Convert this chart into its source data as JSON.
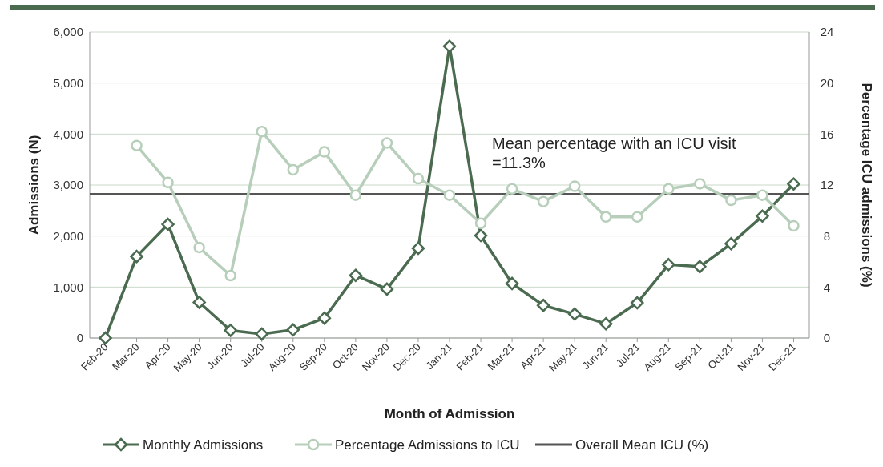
{
  "chart_data": {
    "type": "line",
    "xlabel": "Month of Admission",
    "ylabel": "Admissions (N)",
    "y2label": "Percentage ICU admissions (%)",
    "categories": [
      "Feb-20",
      "Mar-20",
      "Apr-20",
      "May-20",
      "Jun-20",
      "Jul-20",
      "Aug-20",
      "Sep-20",
      "Oct-20",
      "Nov-20",
      "Dec-20",
      "Jan-21",
      "Feb-21",
      "Mar-21",
      "Apr-21",
      "May-21",
      "Jun-21",
      "Jul-21",
      "Aug-21",
      "Sep-21",
      "Oct-21",
      "Nov-21",
      "Dec-21"
    ],
    "series": [
      {
        "name": "Monthly Admissions",
        "color": "#4b6b50",
        "marker": "diamond",
        "values": [
          0,
          1600,
          2230,
          700,
          150,
          80,
          160,
          390,
          1230,
          960,
          1760,
          5720,
          2010,
          1070,
          640,
          470,
          280,
          690,
          1440,
          1400,
          1850,
          2390,
          3020
        ]
      },
      {
        "name": "Percentage Admissions to ICU",
        "color": "#b7cfba",
        "marker": "circle",
        "axis": "y2",
        "values": [
          null,
          15.1,
          12.2,
          7.1,
          4.9,
          16.2,
          13.2,
          14.6,
          11.2,
          15.3,
          12.5,
          11.2,
          9.0,
          11.7,
          10.7,
          11.9,
          9.5,
          9.5,
          11.7,
          12.1,
          10.8,
          11.2,
          8.8
        ]
      }
    ],
    "ref_lines": [
      {
        "axis": "y2",
        "value": 11.3,
        "label": "Overall Mean ICU (%)",
        "color": "#555555"
      }
    ],
    "annotations": [
      "Mean percentage with an ICU visit\n=11.3%"
    ],
    "ylim": [
      0,
      6000
    ],
    "yticks": [
      {
        "value": 0,
        "label": "0"
      },
      {
        "value": 1000,
        "label": "1,000"
      },
      {
        "value": 2000,
        "label": "2,000"
      },
      {
        "value": 3000,
        "label": "3,000"
      },
      {
        "value": 4000,
        "label": "4,000"
      },
      {
        "value": 5000,
        "label": "5,000"
      },
      {
        "value": 6000,
        "label": "6,000"
      }
    ],
    "y2lim": [
      0,
      24
    ],
    "y2ticks": [
      0,
      4,
      8,
      12,
      16,
      20,
      24
    ],
    "grid": "y",
    "legend": "bottom"
  }
}
